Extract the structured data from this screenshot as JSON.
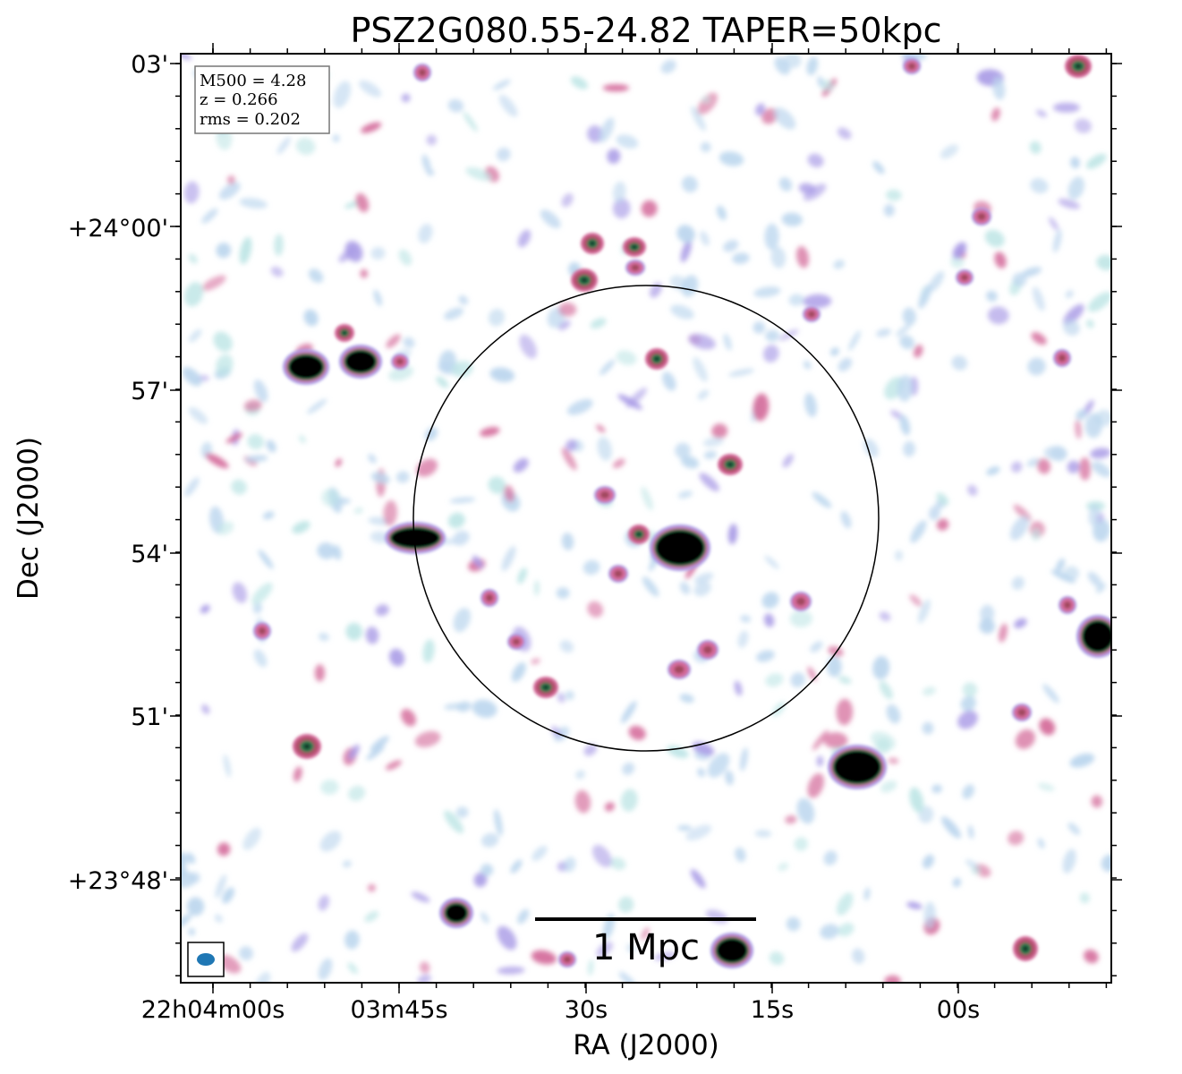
{
  "title": "PSZ2G080.55-24.82 TAPER=50kpc",
  "info_box": {
    "lines": [
      "M500 = 4.28",
      "z = 0.266",
      "rms = 0.202"
    ]
  },
  "axes": {
    "xlabel": "RA (J2000)",
    "ylabel": "Dec (J2000)",
    "x_ticks": [
      "22h04m00s",
      "03m45s",
      "30s",
      "15s",
      "00s"
    ],
    "y_ticks": [
      "03'",
      "+24°00'",
      "57'",
      "54'",
      "51'",
      "+23°48'"
    ]
  },
  "scalebar": {
    "label": "1 Mpc"
  },
  "colors": {
    "frame": "#000000",
    "beam": "#1f77b4",
    "noise_light": "#bcd6ee",
    "noise_cyan": "#bfe6e6",
    "noise_purple": "#a99be6",
    "noise_pink": "#d46a9a",
    "source_core": "#000000",
    "source_ring": "#2e7d4f"
  }
}
